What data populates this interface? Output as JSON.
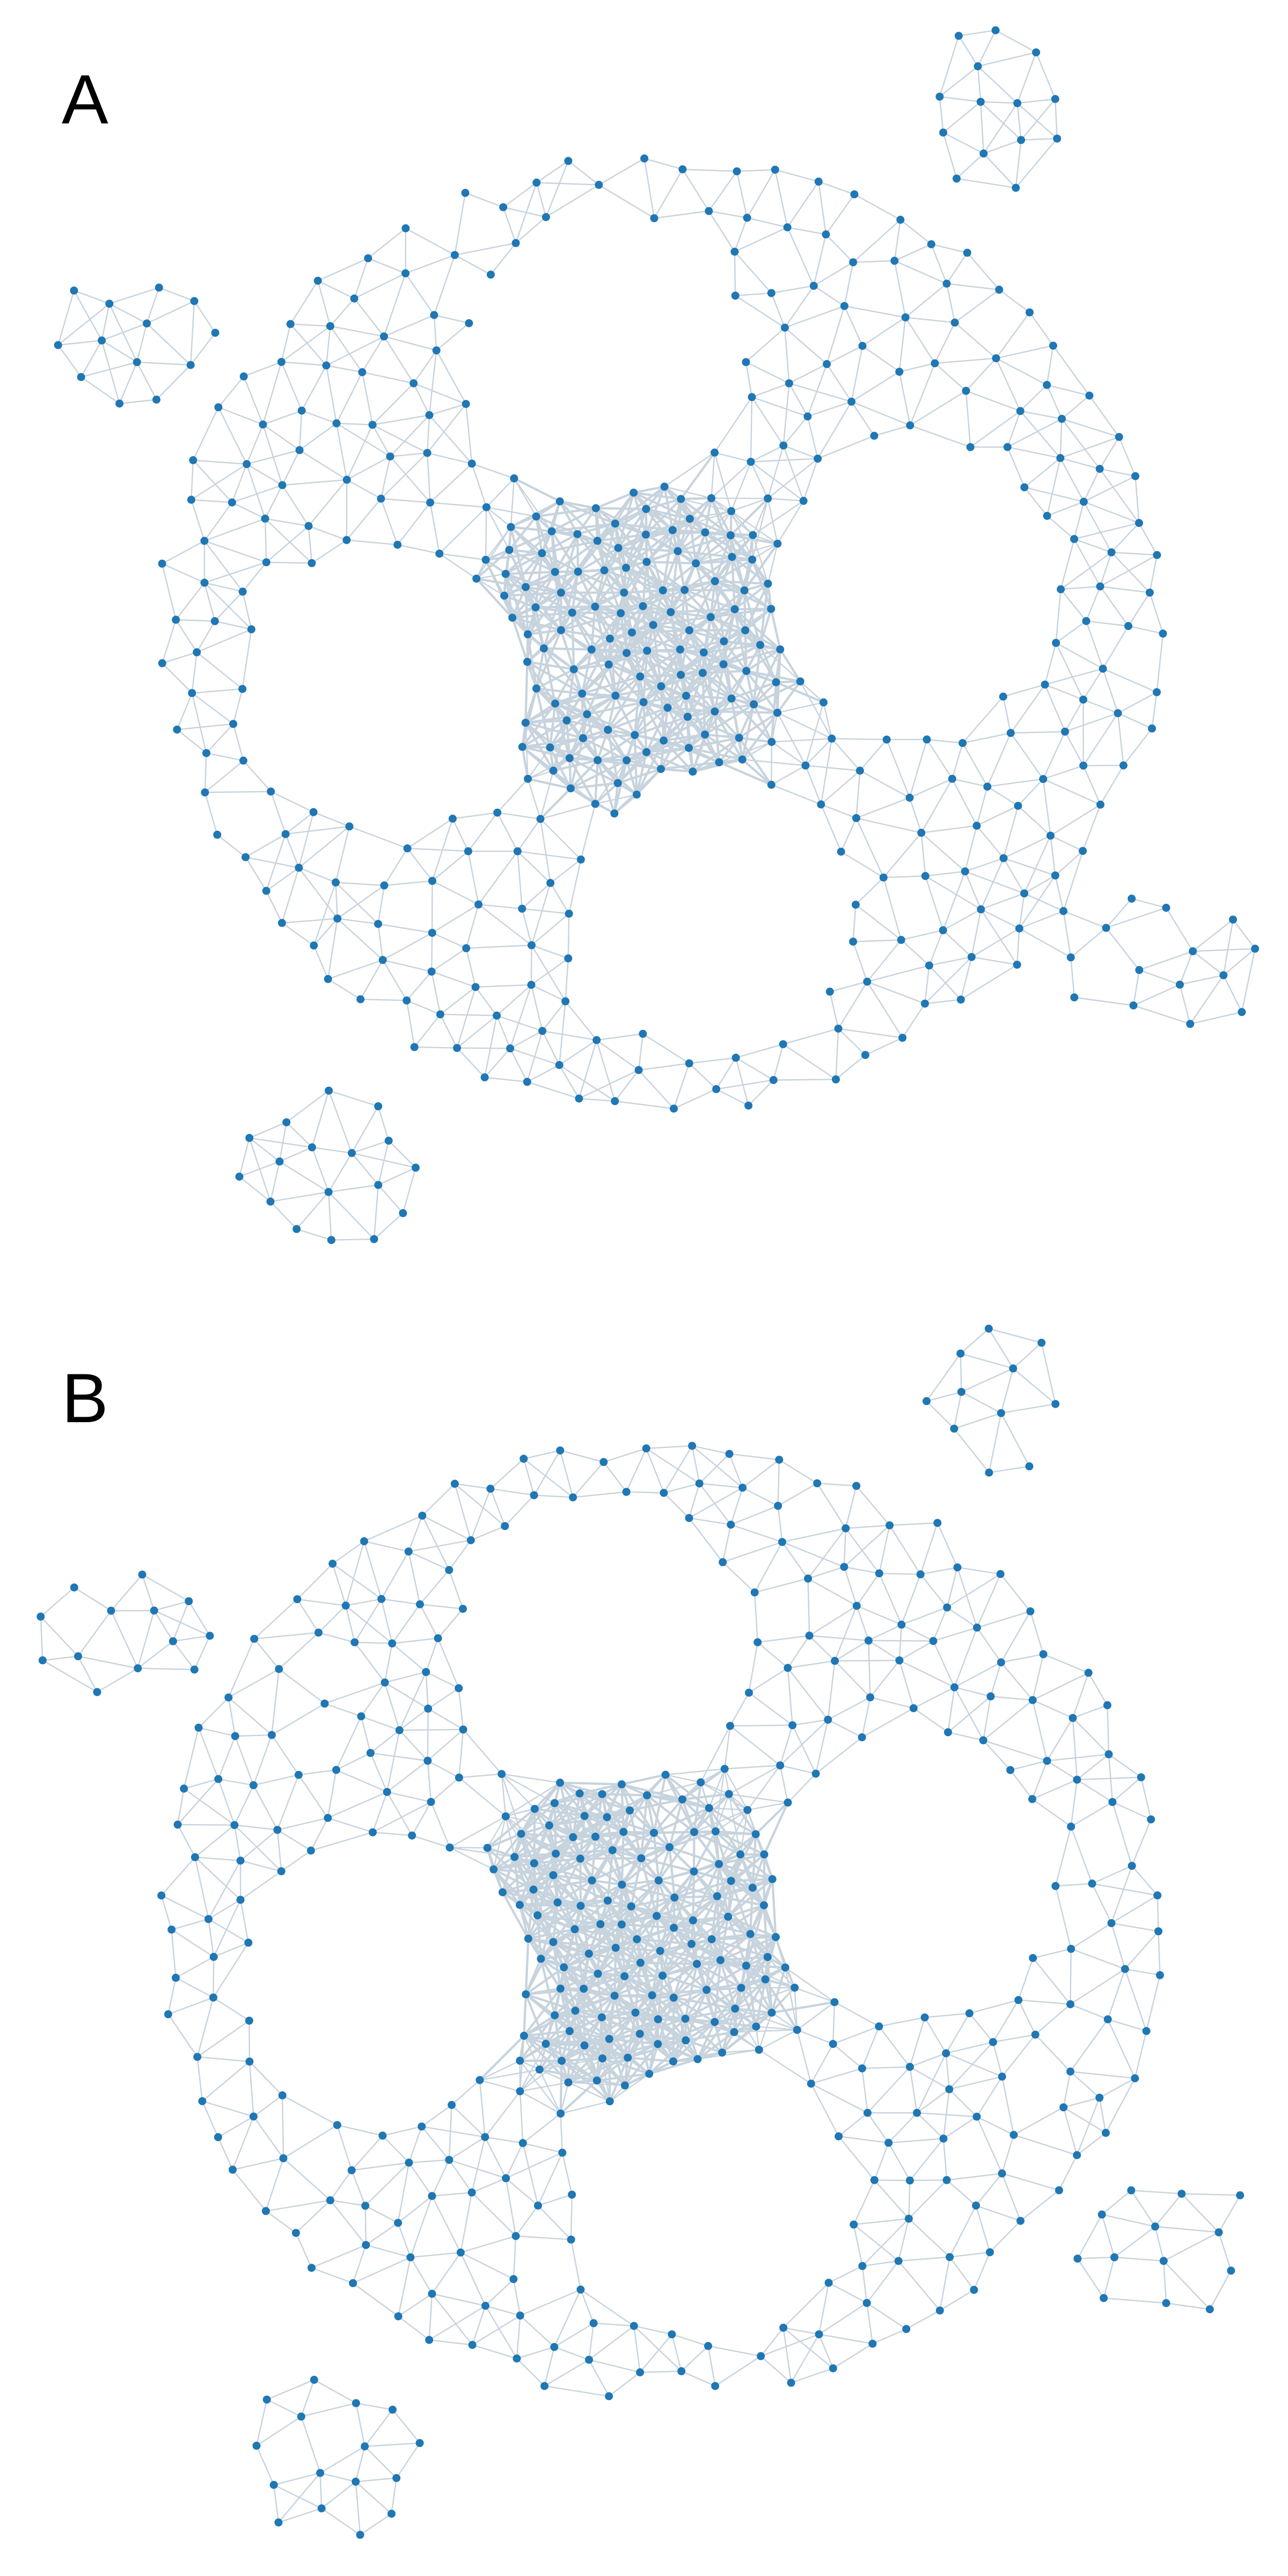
{
  "panels": [
    {
      "label": "A",
      "seed": 11,
      "rotation": 0
    },
    {
      "label": "B",
      "seed": 47,
      "rotation": 1.5
    }
  ],
  "style": {
    "node_color": "#1f77b4",
    "edge_color": "#c7d3dd"
  },
  "graph_description": {
    "shape": "ring-shaped mesh with four circular holes and four protruding arms",
    "holes": 4,
    "arms": 4,
    "dense_core": true
  }
}
